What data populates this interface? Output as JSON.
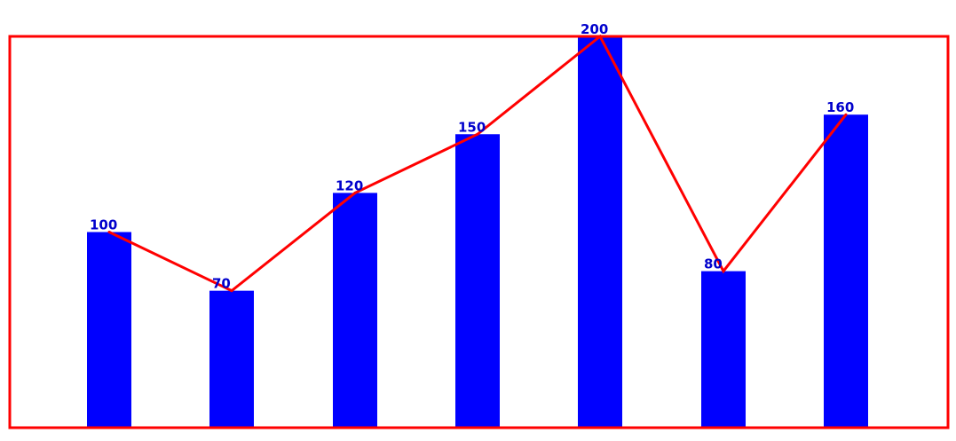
{
  "chart_data": {
    "type": "bar",
    "categories": [
      "",
      "",
      "",
      "",
      "",
      "",
      ""
    ],
    "values": [
      100,
      70,
      120,
      150,
      200,
      80,
      160
    ],
    "overlay": {
      "type": "line",
      "values": [
        100,
        70,
        120,
        150,
        200,
        80,
        160
      ]
    },
    "title": "",
    "xlabel": "",
    "ylabel": "",
    "ylim": [
      0,
      200
    ],
    "grid": false,
    "legend": "none",
    "data_labels": [
      "100",
      "70",
      "120",
      "150",
      "200",
      "80",
      "160"
    ],
    "colors": {
      "bar": "#0000ff",
      "line": "#ff0000",
      "frame": "#ff0000",
      "label": "#0000cc"
    }
  }
}
